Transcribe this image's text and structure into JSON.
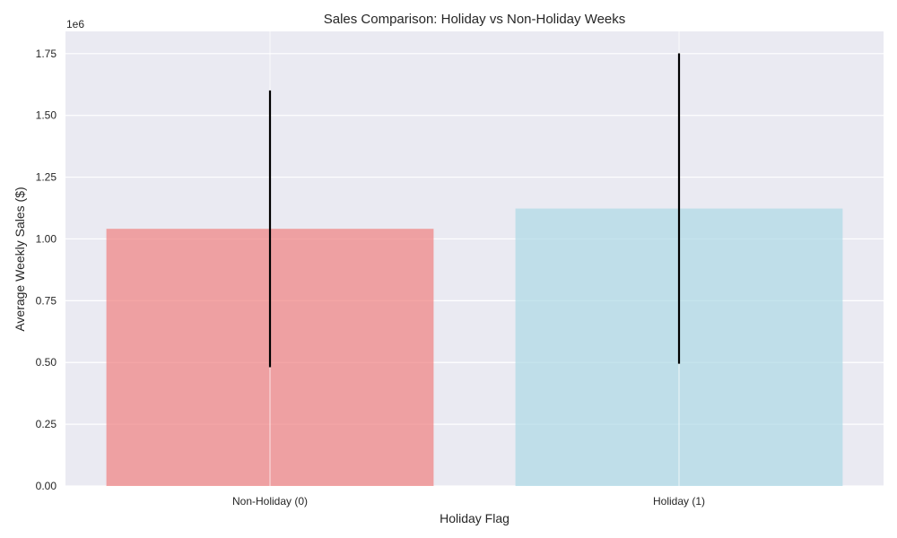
{
  "chart_data": {
    "type": "bar",
    "title": "Sales Comparison: Holiday vs Non-Holiday Weeks",
    "xlabel": "Holiday Flag",
    "ylabel": "Average Weekly Sales ($)",
    "y_offset_label": "1e6",
    "categories": [
      "Non-Holiday (0)",
      "Holiday (1)"
    ],
    "values": [
      1041000,
      1123000
    ],
    "error": [
      560000,
      628000
    ],
    "bar_colors": [
      "#f08080",
      "#add8e6"
    ],
    "ylim": [
      0,
      1840000
    ],
    "yticks": [
      0,
      250000,
      500000,
      750000,
      1000000,
      1250000,
      1500000,
      1750000
    ],
    "ytick_labels": [
      "0.00",
      "0.25",
      "0.50",
      "0.75",
      "1.00",
      "1.25",
      "1.50",
      "1.75"
    ],
    "grid": true,
    "background": "#eaeaf2"
  }
}
